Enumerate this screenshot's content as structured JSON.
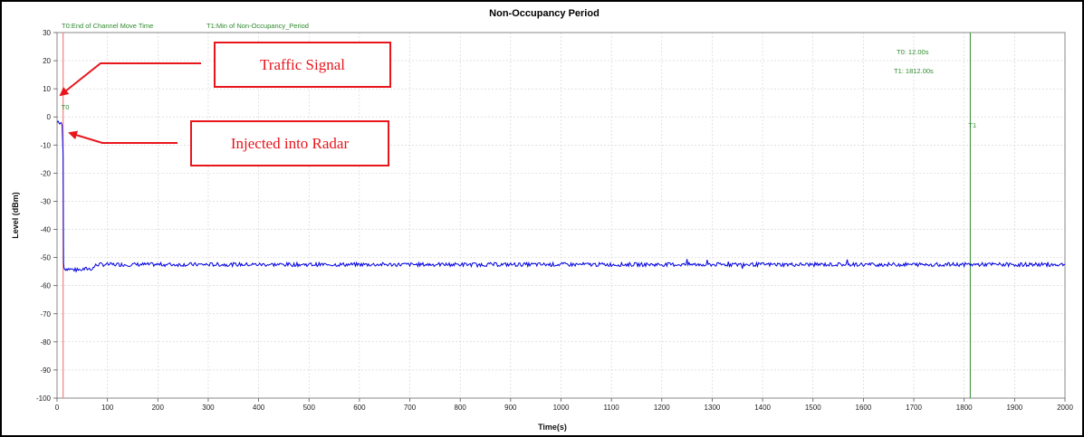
{
  "chart_data": {
    "type": "line",
    "title": "Non-Occupancy Period",
    "xlabel": "Time(s)",
    "ylabel": "Level (dBm)",
    "xlim": [
      0,
      2000
    ],
    "ylim": [
      -100,
      30
    ],
    "x_ticks": [
      0,
      100,
      200,
      300,
      400,
      500,
      600,
      700,
      800,
      900,
      1000,
      1100,
      1200,
      1300,
      1400,
      1500,
      1600,
      1700,
      1800,
      1900,
      2000
    ],
    "y_ticks": [
      30,
      20,
      10,
      0,
      -10,
      -20,
      -30,
      -40,
      -50,
      -60,
      -70,
      -80,
      -90,
      -100
    ],
    "grid": true,
    "series": [
      {
        "color": "#0000e0",
        "x": [
          0,
          2,
          5,
          8,
          10,
          12,
          13,
          14,
          15,
          20,
          40,
          60,
          70,
          75,
          80,
          100,
          200,
          300,
          400,
          500,
          600,
          700,
          800,
          900,
          1000,
          1100,
          1200,
          1300,
          1400,
          1500,
          1600,
          1700,
          1800,
          1900,
          2000
        ],
        "y": [
          -2,
          -1.5,
          -2.5,
          -2,
          -3,
          -14,
          -52,
          -54,
          -54,
          -54,
          -54.5,
          -54,
          -54,
          -53,
          -52.5,
          -52.5,
          -52.5,
          -52.5,
          -52.5,
          -52.5,
          -52.5,
          -52.5,
          -52.5,
          -52.5,
          -52.5,
          -52.5,
          -52.5,
          -52.5,
          -52.5,
          -52.5,
          -52.5,
          -52.5,
          -52.5,
          -52.5,
          -52.5
        ]
      }
    ],
    "markers": [
      {
        "name": "T0",
        "x": 12,
        "color": "#f08080"
      },
      {
        "name": "T1",
        "x": 1812,
        "color": "#2e8b2e"
      }
    ],
    "legend": [
      "T0:End of Channel Move Time",
      "T1:Min of Non-Occupancy_Period"
    ],
    "readouts": [
      "T0: 12.00s",
      "T1: 1812.00s"
    ],
    "annotations": [
      "Traffic Signal",
      "Injected into Radar"
    ]
  },
  "colors": {
    "callout": "#e8151b",
    "marker_text": "#2e8b2e"
  }
}
